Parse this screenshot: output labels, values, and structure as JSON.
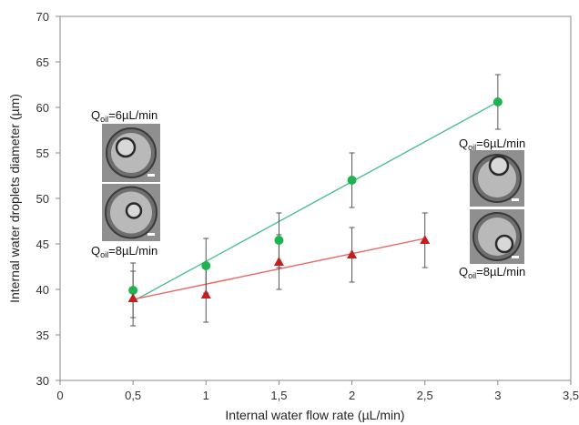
{
  "chart_data": {
    "type": "scatter",
    "title": "",
    "xlabel": "Internal water flow rate (µL/min)",
    "ylabel": "Internal water droplets diameter (µm)",
    "xlim": [
      0,
      3.5
    ],
    "ylim": [
      30,
      70
    ],
    "x_ticks": [
      "0",
      "0,5",
      "1",
      "1,5",
      "2",
      "2,5",
      "3",
      "3,5"
    ],
    "x_tick_values": [
      0,
      0.5,
      1,
      1.5,
      2,
      2.5,
      3,
      3.5
    ],
    "y_ticks": [
      "30",
      "35",
      "40",
      "45",
      "50",
      "55",
      "60",
      "65",
      "70"
    ],
    "y_tick_values": [
      30,
      35,
      40,
      45,
      50,
      55,
      60,
      65,
      70
    ],
    "grid": false,
    "series": [
      {
        "marker": "circle",
        "color": "#1db34e",
        "x": [
          0.5,
          1,
          1.5,
          2,
          3
        ],
        "y": [
          39.9,
          42.6,
          45.4,
          52.0,
          60.6
        ],
        "yerr": [
          3.0,
          3.0,
          3.0,
          3.0,
          3.0
        ],
        "trend": {
          "x": [
            0.5,
            3
          ],
          "y": [
            38.7,
            60.6
          ],
          "color": "#4dbf95"
        }
      },
      {
        "marker": "triangle",
        "color": "#c41e1e",
        "x": [
          0.5,
          1,
          1.5,
          2,
          2.5
        ],
        "y": [
          39.0,
          39.4,
          43.0,
          43.8,
          45.4
        ],
        "yerr": [
          3.0,
          3.0,
          3.0,
          3.0,
          3.0
        ],
        "trend": {
          "x": [
            0.5,
            2.5
          ],
          "y": [
            38.9,
            45.6
          ],
          "color": "#f06060"
        }
      }
    ],
    "annotations": [
      {
        "main": "Q",
        "sub": "oil",
        "rest": "=6µL/min",
        "anchor": "left-top"
      },
      {
        "main": "Q",
        "sub": "oil",
        "rest": "=8µL/min",
        "anchor": "left-bottom"
      },
      {
        "main": "Q",
        "sub": "oil",
        "rest": "=6µL/min",
        "anchor": "right-top"
      },
      {
        "main": "Q",
        "sub": "oil",
        "rest": "=8µL/min",
        "anchor": "right-bottom"
      }
    ],
    "insets": [
      "droplet-micrograph",
      "droplet-micrograph",
      "droplet-micrograph",
      "droplet-micrograph"
    ]
  },
  "colors": {
    "axis": "#8a8a8a",
    "errorbar": "#555555",
    "inset_bg": "#8f8f8f",
    "inset_droplet": "#6e6e6e"
  }
}
